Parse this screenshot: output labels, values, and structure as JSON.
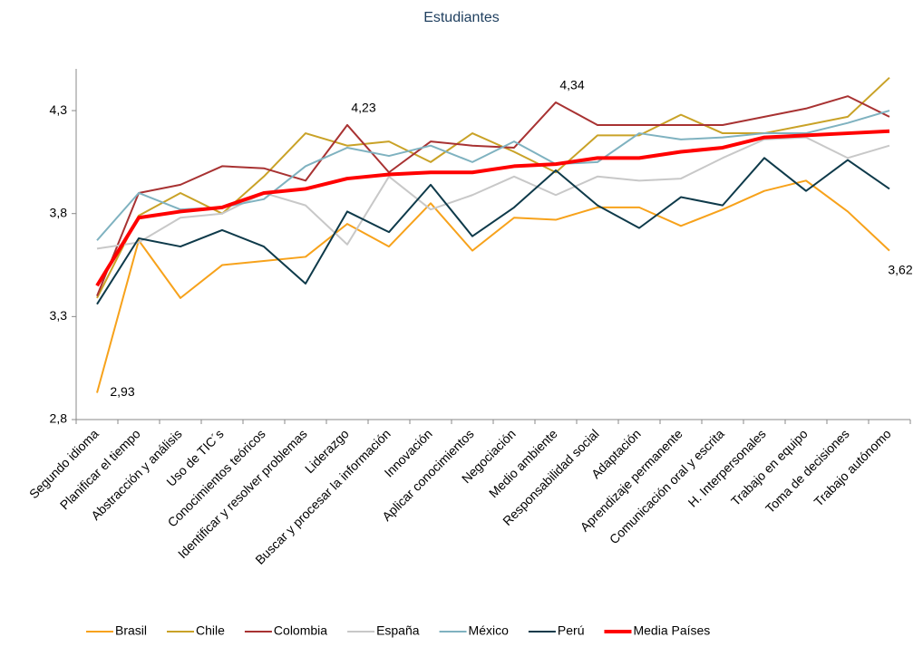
{
  "chart_data": {
    "type": "line",
    "title": "Estudiantes",
    "categories": [
      "Segundo idioma",
      "Planificar el tiempo",
      "Abstracción y análisis",
      "Uso de TIC´s",
      "Conocimientos teóricos",
      "Identificar y resolver problemas",
      "Liderazgo",
      "Buscar y procesar la información",
      "Innovación",
      "Aplicar conocimientos",
      "Negociación",
      "Medio ambiente",
      "Responsabilidad social",
      "Adaptación",
      "Aprendizaje permanente",
      "Comunicación oral y escrita",
      "H. Interpersonales",
      "Trabajo en equipo",
      "Toma de decisiones",
      "Trabajo autónomo"
    ],
    "series": [
      {
        "name": "Brasil",
        "color": "#f7a21b",
        "values": [
          2.93,
          3.67,
          3.39,
          3.55,
          3.57,
          3.59,
          3.75,
          3.64,
          3.85,
          3.62,
          3.78,
          3.77,
          3.83,
          3.83,
          3.74,
          3.82,
          3.91,
          3.96,
          3.81,
          3.62
        ],
        "value_labels": [
          "2,93",
          null,
          null,
          null,
          null,
          null,
          null,
          null,
          null,
          null,
          null,
          null,
          null,
          null,
          null,
          null,
          null,
          null,
          null,
          "3,62"
        ]
      },
      {
        "name": "Chile",
        "color": "#c9a227",
        "values": [
          3.39,
          3.79,
          3.9,
          3.8,
          3.98,
          4.19,
          4.13,
          4.15,
          4.05,
          4.19,
          4.1,
          4.0,
          4.18,
          4.18,
          4.28,
          4.19,
          4.19,
          4.23,
          4.27,
          4.46
        ]
      },
      {
        "name": "Colombia",
        "color": "#a83232",
        "values": [
          3.4,
          3.9,
          3.94,
          4.03,
          4.02,
          3.96,
          4.23,
          4.0,
          4.15,
          4.13,
          4.12,
          4.34,
          4.23,
          4.23,
          4.23,
          4.23,
          4.27,
          4.31,
          4.37,
          4.27
        ],
        "value_labels": [
          null,
          null,
          null,
          null,
          null,
          null,
          "4,23",
          null,
          null,
          null,
          null,
          "4,34",
          null,
          null,
          null,
          null,
          null,
          null,
          null,
          null
        ]
      },
      {
        "name": "España",
        "color": "#c8c8c8",
        "values": [
          3.63,
          3.66,
          3.78,
          3.8,
          3.9,
          3.84,
          3.65,
          3.98,
          3.82,
          3.89,
          3.98,
          3.89,
          3.98,
          3.96,
          3.97,
          4.07,
          4.16,
          4.17,
          4.07,
          4.13
        ]
      },
      {
        "name": "México",
        "color": "#7fb2c0",
        "values": [
          3.67,
          3.9,
          3.82,
          3.83,
          3.87,
          4.03,
          4.12,
          4.08,
          4.13,
          4.05,
          4.15,
          4.04,
          4.05,
          4.19,
          4.16,
          4.17,
          4.19,
          4.19,
          4.24,
          4.3
        ]
      },
      {
        "name": "Perú",
        "color": "#0e3a4a",
        "values": [
          3.36,
          3.68,
          3.64,
          3.72,
          3.64,
          3.46,
          3.81,
          3.71,
          3.94,
          3.69,
          3.83,
          4.01,
          3.84,
          3.73,
          3.88,
          3.84,
          4.07,
          3.91,
          4.06,
          3.92
        ]
      },
      {
        "name": "Media Países",
        "color": "#ff0000",
        "values": [
          3.45,
          3.78,
          3.81,
          3.83,
          3.9,
          3.92,
          3.97,
          3.99,
          4.0,
          4.0,
          4.03,
          4.04,
          4.07,
          4.07,
          4.1,
          4.12,
          4.17,
          4.18,
          4.19,
          4.2
        ]
      }
    ],
    "ylim": [
      2.8,
      4.5
    ],
    "yticks": [
      {
        "value": 2.8,
        "label": "2,8"
      },
      {
        "value": 3.3,
        "label": "3,3"
      },
      {
        "value": 3.8,
        "label": "3,8"
      },
      {
        "value": 4.3,
        "label": "4,3"
      }
    ],
    "grid": false,
    "legend": "bottom"
  }
}
